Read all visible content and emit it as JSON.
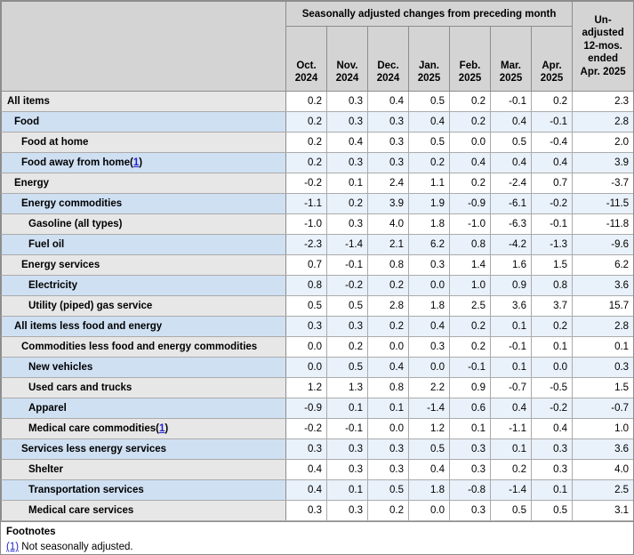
{
  "chart_data": {
    "type": "table",
    "span_header": "Seasonally adjusted changes from preceding month",
    "columns": {
      "months": [
        "Oct. 2024",
        "Nov. 2024",
        "Dec. 2024",
        "Jan. 2025",
        "Feb. 2025",
        "Mar. 2025",
        "Apr. 2025"
      ],
      "unadjusted_lines": [
        "Un-",
        "adjusted",
        "12-mos.",
        "ended",
        "Apr. 2025"
      ],
      "unadjusted_full": "Un-adjusted 12-mos. ended Apr. 2025"
    },
    "rows": [
      {
        "label": "All items",
        "indent": 0,
        "footnote": "",
        "values": [
          "0.2",
          "0.3",
          "0.4",
          "0.5",
          "0.2",
          "-0.1",
          "0.2"
        ],
        "unadjusted_12mo": "2.3"
      },
      {
        "label": "Food",
        "indent": 1,
        "footnote": "",
        "values": [
          "0.2",
          "0.3",
          "0.3",
          "0.4",
          "0.2",
          "0.4",
          "-0.1"
        ],
        "unadjusted_12mo": "2.8"
      },
      {
        "label": "Food at home",
        "indent": 2,
        "footnote": "",
        "values": [
          "0.2",
          "0.4",
          "0.3",
          "0.5",
          "0.0",
          "0.5",
          "-0.4"
        ],
        "unadjusted_12mo": "2.0"
      },
      {
        "label": "Food away from home",
        "indent": 2,
        "footnote": "1",
        "values": [
          "0.2",
          "0.3",
          "0.3",
          "0.2",
          "0.4",
          "0.4",
          "0.4"
        ],
        "unadjusted_12mo": "3.9"
      },
      {
        "label": "Energy",
        "indent": 1,
        "footnote": "",
        "values": [
          "-0.2",
          "0.1",
          "2.4",
          "1.1",
          "0.2",
          "-2.4",
          "0.7"
        ],
        "unadjusted_12mo": "-3.7"
      },
      {
        "label": "Energy commodities",
        "indent": 2,
        "footnote": "",
        "values": [
          "-1.1",
          "0.2",
          "3.9",
          "1.9",
          "-0.9",
          "-6.1",
          "-0.2"
        ],
        "unadjusted_12mo": "-11.5"
      },
      {
        "label": "Gasoline (all types)",
        "indent": 3,
        "footnote": "",
        "values": [
          "-1.0",
          "0.3",
          "4.0",
          "1.8",
          "-1.0",
          "-6.3",
          "-0.1"
        ],
        "unadjusted_12mo": "-11.8"
      },
      {
        "label": "Fuel oil",
        "indent": 3,
        "footnote": "",
        "values": [
          "-2.3",
          "-1.4",
          "2.1",
          "6.2",
          "0.8",
          "-4.2",
          "-1.3"
        ],
        "unadjusted_12mo": "-9.6"
      },
      {
        "label": "Energy services",
        "indent": 2,
        "footnote": "",
        "values": [
          "0.7",
          "-0.1",
          "0.8",
          "0.3",
          "1.4",
          "1.6",
          "1.5"
        ],
        "unadjusted_12mo": "6.2"
      },
      {
        "label": "Electricity",
        "indent": 3,
        "footnote": "",
        "values": [
          "0.8",
          "-0.2",
          "0.2",
          "0.0",
          "1.0",
          "0.9",
          "0.8"
        ],
        "unadjusted_12mo": "3.6"
      },
      {
        "label": "Utility (piped) gas service",
        "indent": 3,
        "footnote": "",
        "values": [
          "0.5",
          "0.5",
          "2.8",
          "1.8",
          "2.5",
          "3.6",
          "3.7"
        ],
        "unadjusted_12mo": "15.7"
      },
      {
        "label": "All items less food and energy",
        "indent": 1,
        "footnote": "",
        "values": [
          "0.3",
          "0.3",
          "0.2",
          "0.4",
          "0.2",
          "0.1",
          "0.2"
        ],
        "unadjusted_12mo": "2.8"
      },
      {
        "label": "Commodities less food and energy commodities",
        "indent": 2,
        "footnote": "",
        "values": [
          "0.0",
          "0.2",
          "0.0",
          "0.3",
          "0.2",
          "-0.1",
          "0.1"
        ],
        "unadjusted_12mo": "0.1"
      },
      {
        "label": "New vehicles",
        "indent": 3,
        "footnote": "",
        "values": [
          "0.0",
          "0.5",
          "0.4",
          "0.0",
          "-0.1",
          "0.1",
          "0.0"
        ],
        "unadjusted_12mo": "0.3"
      },
      {
        "label": "Used cars and trucks",
        "indent": 3,
        "footnote": "",
        "values": [
          "1.2",
          "1.3",
          "0.8",
          "2.2",
          "0.9",
          "-0.7",
          "-0.5"
        ],
        "unadjusted_12mo": "1.5"
      },
      {
        "label": "Apparel",
        "indent": 3,
        "footnote": "",
        "values": [
          "-0.9",
          "0.1",
          "0.1",
          "-1.4",
          "0.6",
          "0.4",
          "-0.2"
        ],
        "unadjusted_12mo": "-0.7"
      },
      {
        "label": "Medical care commodities",
        "indent": 3,
        "footnote": "1",
        "values": [
          "-0.2",
          "-0.1",
          "0.0",
          "1.2",
          "0.1",
          "-1.1",
          "0.4"
        ],
        "unadjusted_12mo": "1.0"
      },
      {
        "label": "Services less energy services",
        "indent": 2,
        "footnote": "",
        "values": [
          "0.3",
          "0.3",
          "0.3",
          "0.5",
          "0.3",
          "0.1",
          "0.3"
        ],
        "unadjusted_12mo": "3.6"
      },
      {
        "label": "Shelter",
        "indent": 3,
        "footnote": "",
        "values": [
          "0.4",
          "0.3",
          "0.3",
          "0.4",
          "0.3",
          "0.2",
          "0.3"
        ],
        "unadjusted_12mo": "4.0"
      },
      {
        "label": "Transportation services",
        "indent": 3,
        "footnote": "",
        "values": [
          "0.4",
          "0.1",
          "0.5",
          "1.8",
          "-0.8",
          "-1.4",
          "0.1"
        ],
        "unadjusted_12mo": "2.5"
      },
      {
        "label": "Medical care services",
        "indent": 3,
        "footnote": "",
        "values": [
          "0.3",
          "0.3",
          "0.2",
          "0.0",
          "0.3",
          "0.5",
          "0.5"
        ],
        "unadjusted_12mo": "3.1"
      }
    ]
  },
  "footnotes": {
    "title": "Footnotes",
    "items": [
      {
        "marker": "(1)",
        "text": "Not seasonally adjusted."
      }
    ]
  },
  "colors": {
    "header_gray": "#d4d4d4",
    "stub_gray": "#e7e7e7",
    "stub_blue": "#cfe0f3",
    "row_alt_blue": "#e9f1fa",
    "link_blue": "#2222cc",
    "border_dark": "#8d8d8d",
    "border_light": "#ababab"
  }
}
